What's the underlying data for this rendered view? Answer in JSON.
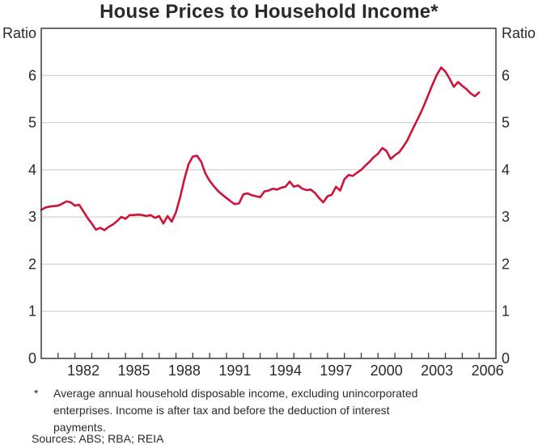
{
  "title": "House Prices to Household Income*",
  "axis": {
    "left_unit": "Ratio",
    "right_unit": "Ratio",
    "y_ticks": [
      "0",
      "1",
      "2",
      "3",
      "4",
      "5",
      "6"
    ],
    "x_tick_labels": [
      "1982",
      "1985",
      "1988",
      "1991",
      "1994",
      "1997",
      "2000",
      "2003",
      "2006"
    ]
  },
  "footnote": {
    "marker": "*",
    "lines": [
      "Average annual household disposable income, excluding unincorporated",
      "enterprises. Income is after tax and before the deduction of interest",
      "payments."
    ],
    "sources": "Sources: ABS; RBA; REIA"
  },
  "colors": {
    "line": "#ce1338",
    "grid": "#c6c8ca",
    "frame": "#3b3b3b",
    "text": "#2a2a2a"
  },
  "chart_data": {
    "type": "line",
    "title": "House Prices to Household Income*",
    "ylabel": "Ratio",
    "ylim": [
      0,
      7
    ],
    "y_gridlines": [
      1,
      2,
      3,
      4,
      5,
      6
    ],
    "x_range_years": [
      1980,
      2007
    ],
    "x_tick_labels": [
      1982,
      1985,
      1988,
      1991,
      1994,
      1997,
      2000,
      2003,
      2006
    ],
    "frequency": "quarterly",
    "start": "1980Q1",
    "end": "2006Q1",
    "legend": "none",
    "grid": "horizontal-only",
    "series": [
      {
        "name": "House prices to household income ratio",
        "color": "#ce1338",
        "values": [
          3.15,
          3.2,
          3.22,
          3.23,
          3.24,
          3.28,
          3.33,
          3.31,
          3.24,
          3.26,
          3.12,
          2.98,
          2.86,
          2.73,
          2.77,
          2.72,
          2.79,
          2.84,
          2.91,
          3.0,
          2.96,
          3.04,
          3.04,
          3.05,
          3.04,
          3.02,
          3.04,
          2.98,
          3.02,
          2.86,
          3.02,
          2.9,
          3.1,
          3.42,
          3.8,
          4.12,
          4.28,
          4.3,
          4.17,
          3.92,
          3.77,
          3.65,
          3.55,
          3.47,
          3.4,
          3.33,
          3.27,
          3.29,
          3.48,
          3.5,
          3.46,
          3.44,
          3.42,
          3.54,
          3.56,
          3.6,
          3.58,
          3.62,
          3.64,
          3.75,
          3.64,
          3.67,
          3.6,
          3.57,
          3.58,
          3.51,
          3.4,
          3.31,
          3.44,
          3.47,
          3.64,
          3.56,
          3.8,
          3.89,
          3.87,
          3.94,
          4.0,
          4.09,
          4.17,
          4.27,
          4.34,
          4.46,
          4.4,
          4.23,
          4.31,
          4.37,
          4.49,
          4.63,
          4.82,
          5.0,
          5.18,
          5.38,
          5.6,
          5.82,
          6.02,
          6.17,
          6.08,
          5.93,
          5.76,
          5.86,
          5.78,
          5.71,
          5.62,
          5.56,
          5.64
        ]
      }
    ]
  }
}
